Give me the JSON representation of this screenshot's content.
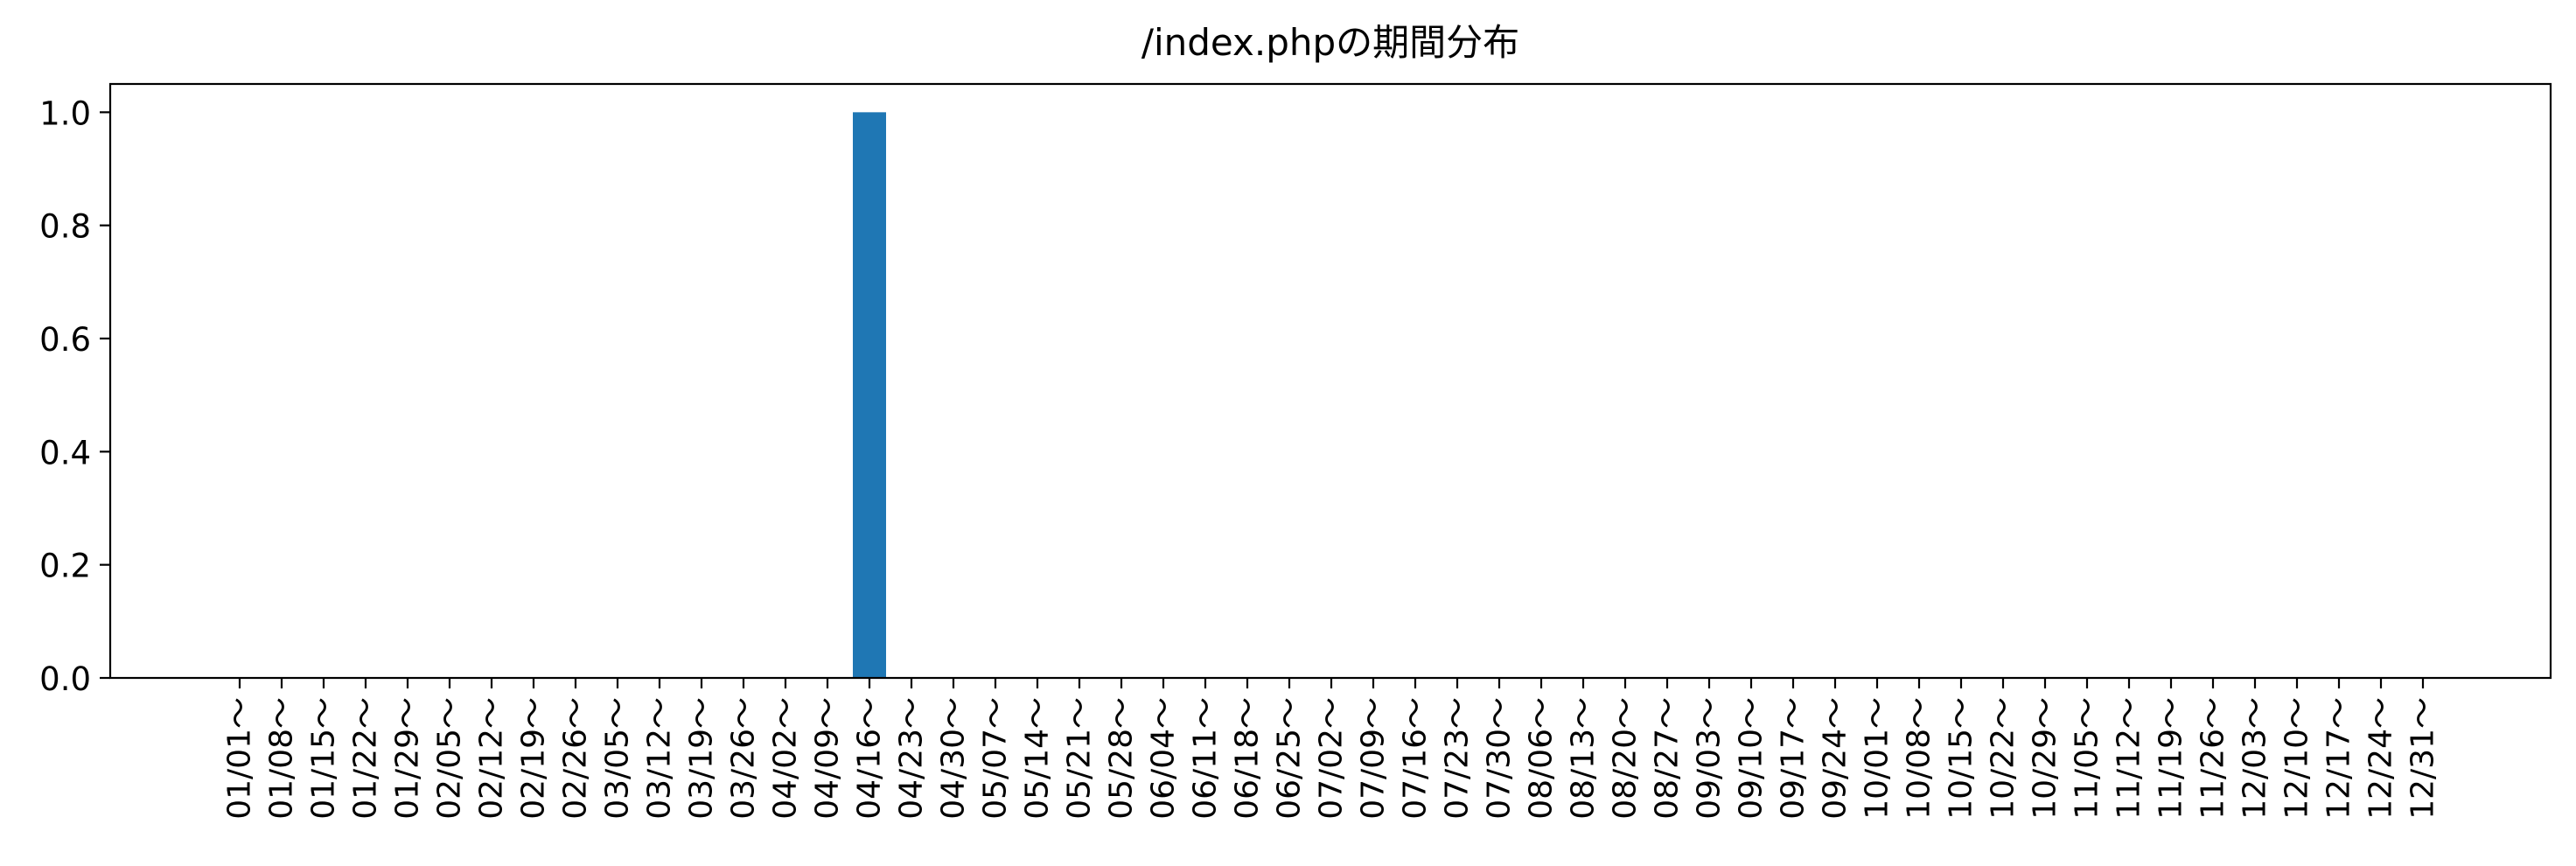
{
  "chart_data": {
    "type": "bar",
    "title": "/index.phpの期間分布",
    "xlabel": "",
    "ylabel": "",
    "ylim": [
      0,
      1.05
    ],
    "yticks": [
      "0.0",
      "0.2",
      "0.4",
      "0.6",
      "0.8",
      "1.0"
    ],
    "categories": [
      "01/01～",
      "01/08～",
      "01/15～",
      "01/22～",
      "01/29～",
      "02/05～",
      "02/12～",
      "02/19～",
      "02/26～",
      "03/05～",
      "03/12～",
      "03/19～",
      "03/26～",
      "04/02～",
      "04/09～",
      "04/16～",
      "04/23～",
      "04/30～",
      "05/07～",
      "05/14～",
      "05/21～",
      "05/28～",
      "06/04～",
      "06/11～",
      "06/18～",
      "06/25～",
      "07/02～",
      "07/09～",
      "07/16～",
      "07/23～",
      "07/30～",
      "08/06～",
      "08/13～",
      "08/20～",
      "08/27～",
      "09/03～",
      "09/10～",
      "09/17～",
      "09/24～",
      "10/01～",
      "10/08～",
      "10/15～",
      "10/22～",
      "10/29～",
      "11/05～",
      "11/12～",
      "11/19～",
      "11/26～",
      "12/03～",
      "12/10～",
      "12/17～",
      "12/24～",
      "12/31～"
    ],
    "values": [
      0,
      0,
      0,
      0,
      0,
      0,
      0,
      0,
      0,
      0,
      0,
      0,
      0,
      0,
      0,
      1,
      0,
      0,
      0,
      0,
      0,
      0,
      0,
      0,
      0,
      0,
      0,
      0,
      0,
      0,
      0,
      0,
      0,
      0,
      0,
      0,
      0,
      0,
      0,
      0,
      0,
      0,
      0,
      0,
      0,
      0,
      0,
      0,
      0,
      0,
      0,
      0,
      0
    ],
    "grid": false,
    "legend": "none",
    "colors": {
      "bar": "#1f77b4",
      "axis": "#000000",
      "background": "#ffffff"
    }
  }
}
